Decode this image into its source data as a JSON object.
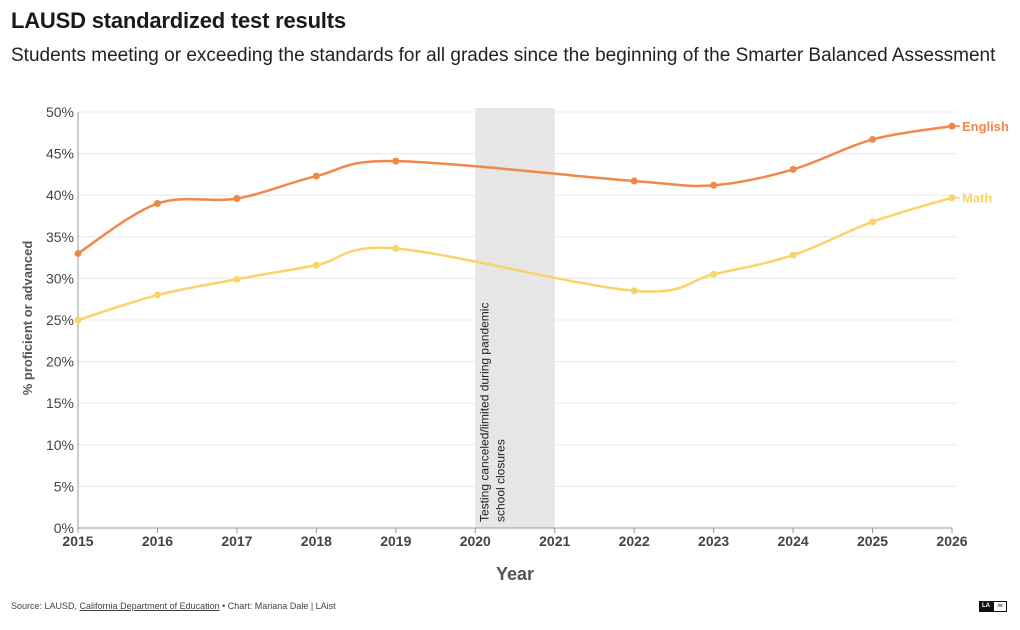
{
  "header": {
    "title": "LAUSD standardized test results",
    "subtitle": "Students meeting or exceeding the standards for all grades since the beginning of the Smarter Balanced Assessment"
  },
  "chart_data": {
    "type": "line",
    "x": [
      2015,
      2016,
      2017,
      2018,
      2019,
      2022,
      2023,
      2024,
      2025,
      2026
    ],
    "x_ticks": [
      "2015",
      "2016",
      "2017",
      "2018",
      "2019",
      "2020",
      "2021",
      "2022",
      "2023",
      "2024",
      "2025",
      "2026"
    ],
    "xlim": [
      2015,
      2026
    ],
    "ylim": [
      0,
      50
    ],
    "y_ticks": [
      "0%",
      "5%",
      "10%",
      "15%",
      "20%",
      "25%",
      "30%",
      "35%",
      "40%",
      "45%",
      "50%"
    ],
    "xlabel": "Year",
    "ylabel": "% proficient or advanced",
    "grid": true,
    "series": [
      {
        "name": "English",
        "color": "#f0884a",
        "values": [
          33,
          39,
          39.6,
          42.3,
          44.1,
          41.7,
          41.2,
          43.1,
          46.7,
          48.3
        ]
      },
      {
        "name": "Math",
        "color": "#f8d469",
        "values": [
          25,
          28,
          29.9,
          31.6,
          33.6,
          28.5,
          30.5,
          32.8,
          36.8,
          39.7
        ]
      }
    ],
    "annotation": {
      "x_range": [
        2020,
        2021
      ],
      "lines": [
        "Testing canceled/limited during pandemic",
        "school closures"
      ]
    }
  },
  "footer": {
    "source_prefix": "Source: LAUSD,",
    "source_link": "California Department of Education",
    "credit": "• Chart: Mariana Dale | LAist"
  },
  "logo": {
    "left": "LA",
    "right": "ist"
  }
}
